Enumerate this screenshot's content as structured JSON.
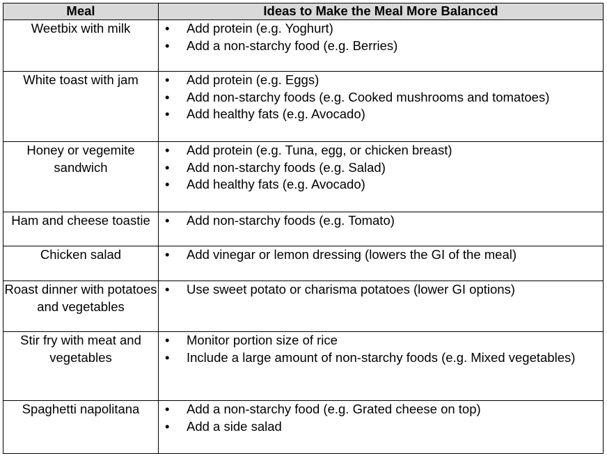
{
  "headers": {
    "meal": "Meal",
    "ideas": "Ideas to Make the Meal More Balanced"
  },
  "rows": [
    {
      "meal": "Weetbix with milk",
      "ideas": [
        "Add protein (e.g. Yoghurt)",
        "Add a non-starchy food (e.g. Berries)"
      ]
    },
    {
      "meal": "White toast with jam",
      "ideas": [
        "Add protein (e.g. Eggs)",
        "Add non-starchy foods (e.g. Cooked mushrooms and tomatoes)",
        "Add healthy fats (e.g. Avocado)"
      ]
    },
    {
      "meal": "Honey or vegemite sandwich",
      "ideas": [
        "Add protein (e.g. Tuna, egg, or chicken breast)",
        "Add non-starchy foods (e.g. Salad)",
        "Add healthy fats (e.g. Avocado)"
      ]
    },
    {
      "meal": "Ham and cheese toastie",
      "ideas": [
        "Add non-starchy foods (e.g. Tomato)"
      ]
    },
    {
      "meal": "Chicken salad",
      "ideas": [
        "Add vinegar or lemon dressing (lowers the GI of the meal)"
      ]
    },
    {
      "meal": "Roast dinner with potatoes and vegetables",
      "ideas": [
        "Use sweet potato or charisma potatoes (lower GI options)"
      ]
    },
    {
      "meal": "Stir fry with meat and vegetables",
      "ideas": [
        "Monitor portion size of rice",
        "Include a large amount of non-starchy foods (e.g. Mixed vegetables)"
      ]
    },
    {
      "meal": "Spaghetti napolitana",
      "ideas": [
        "Add a non-starchy food (e.g. Grated cheese on top)",
        "Add a side salad"
      ]
    }
  ]
}
